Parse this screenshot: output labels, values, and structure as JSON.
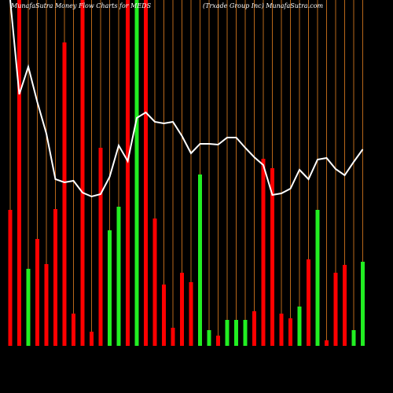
{
  "chart_data": {
    "type": "bar",
    "title": "MunafaSutra  Money Flow  Charts for MEDS",
    "subtitle": "(Trxade  Group Inc) MunafaSutra.com",
    "values": [
      173,
      440,
      98,
      136,
      104,
      174,
      386,
      41,
      440,
      18,
      252,
      147,
      177,
      440,
      440,
      440,
      162,
      78,
      23,
      93,
      81,
      218,
      20,
      13,
      33,
      33,
      33,
      44,
      238,
      226,
      41,
      35,
      50,
      110,
      173,
      7,
      93,
      103,
      20,
      107
    ],
    "colors": [
      "#ff0000",
      "#ff0000",
      "#22ee22",
      "#ff0000",
      "#ff0000",
      "#ff0000",
      "#ff0000",
      "#ff0000",
      "#ff0000",
      "#ff0000",
      "#ff0000",
      "#22ee22",
      "#22ee22",
      "#ff0000",
      "#22ee22",
      "#ff0000",
      "#ff0000",
      "#ff0000",
      "#ff0000",
      "#ff0000",
      "#ff0000",
      "#22ee22",
      "#22ee22",
      "#ff0000",
      "#22ee22",
      "#22ee22",
      "#22ee22",
      "#ff0000",
      "#ff0000",
      "#ff0000",
      "#ff0000",
      "#ff0000",
      "#22ee22",
      "#ff0000",
      "#22ee22",
      "#ff0000",
      "#ff0000",
      "#ff0000",
      "#22ee22",
      "#22ee22"
    ],
    "line": {
      "color": "#ffffff",
      "values": [
        440,
        320,
        355,
        310,
        270,
        212,
        208,
        210,
        195,
        190,
        193,
        215,
        255,
        235,
        290,
        297,
        285,
        283,
        285,
        267,
        245,
        257,
        257,
        256,
        265,
        265,
        252,
        240,
        230,
        192,
        194,
        200,
        224,
        212,
        237,
        239,
        225,
        217,
        234,
        250
      ]
    },
    "ylim": [
      0,
      440
    ],
    "grid": true,
    "grid_color": "#b8671a"
  }
}
